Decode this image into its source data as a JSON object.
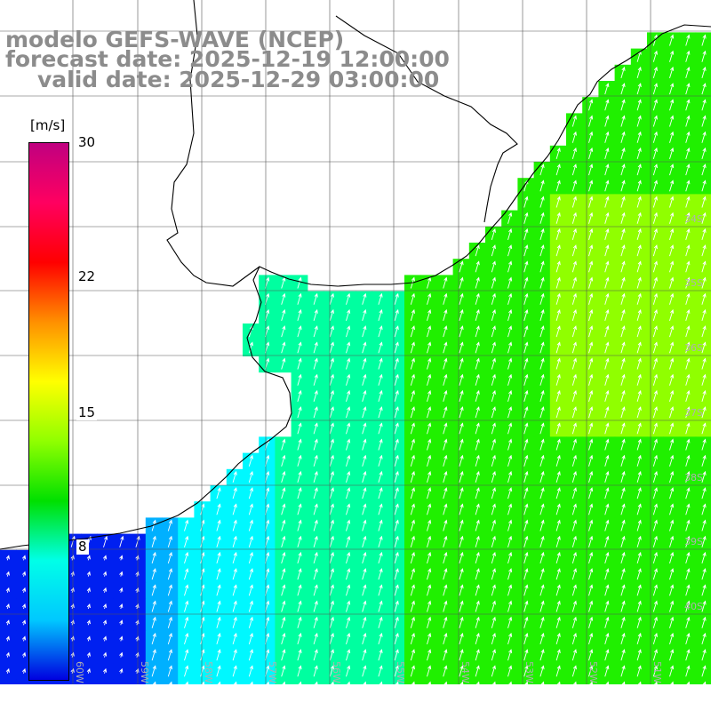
{
  "title": {
    "line1": "modelo GEFS-WAVE (NCEP)",
    "line2": "forecast date: 2025-12-19 12:00:00",
    "line3": "valid date: 2025-12-29 03:00:00"
  },
  "colorbar": {
    "unit": "[m/s]",
    "ticks": [
      "30",
      "22",
      "15",
      "8"
    ],
    "range": [
      0,
      30
    ],
    "colors": [
      "#0000e0",
      "#00c8ff",
      "#00ffe8",
      "#00e000",
      "#90ff00",
      "#ffff00",
      "#ff9000",
      "#ff0000",
      "#ff0060",
      "#c00080"
    ]
  },
  "grid": {
    "lat_labels": [
      "34S",
      "35S",
      "36S",
      "37S",
      "38S",
      "39S",
      "40S"
    ],
    "lon_labels": [
      "60W",
      "59W",
      "58W",
      "57W",
      "56W",
      "55W",
      "54W",
      "53W",
      "52W",
      "51W"
    ]
  },
  "field": {
    "variable": "wind speed",
    "colors": {
      "deep_blue": "#0020f0",
      "light_blue": "#00b0ff",
      "cyan": "#00f8ff",
      "aqua_green": "#00ffa0",
      "green": "#20f000",
      "yellow_green": "#90ff00",
      "coast": "#000000",
      "arrows": "#ffffff",
      "gridlines": "#555555"
    }
  }
}
